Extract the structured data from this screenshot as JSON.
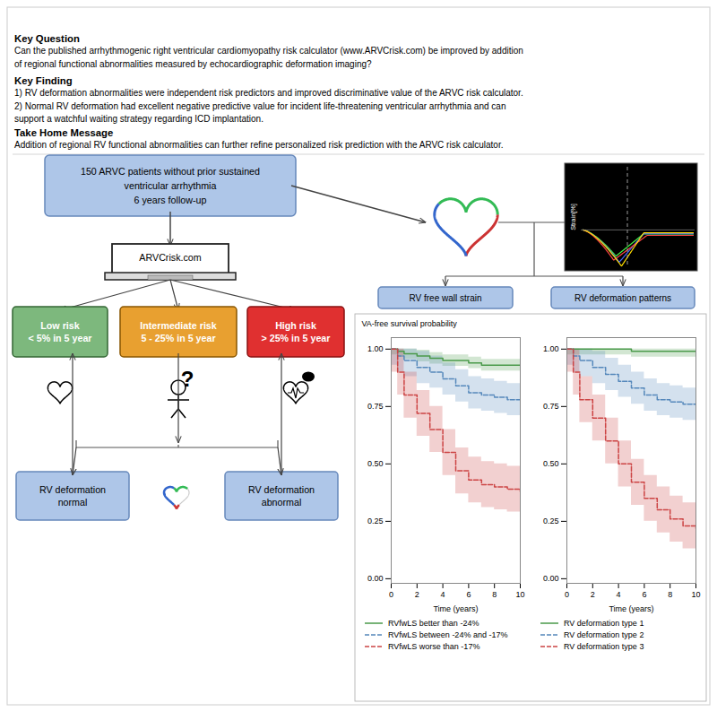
{
  "annotations": [
    {
      "text": "Key Question"
    },
    {
      "text": "Can the published arrhythmogenic right ventricular cardiomyopathy risk calculator (www.ARVCrisk.com) be improved by addition\nof regional functional abnormalities measured by echocardiographic deformation imaging?"
    },
    {
      "text": "Key Finding"
    },
    {
      "text": "1) RV deformation abnormalities were independent risk predictors and improved discriminative value of the ARVC risk calculator.\n2) Normal RV deformation had excellent negative predictive value for incident life-threatening ventricular arrhythmia and can\nsupport a watchful waiting strategy regarding ICD implantation."
    },
    {
      "text": "Take Home Message"
    },
    {
      "text": "Addition of regional RV functional abnormalities can further refine personalized risk prediction with the ARVC risk calculator."
    },
    {
      "text": "150 ARVC patients without prior sustained\nventricular arrhythmia\n6 years follow-up",
      "color": "#aec6e8"
    },
    {
      "text": "ARVCrisk.com"
    },
    {
      "text": "Low risk\n< 5% in 5 year",
      "color": "#7db87d"
    },
    {
      "text": "Intermediate risk\n5 - 25% in 5 year",
      "color": "#e8a030"
    },
    {
      "text": "High risk\n> 25% in 5 year",
      "color": "#e03030"
    },
    {
      "text": "RV deformation\nnormal",
      "color": "#aec6e8"
    },
    {
      "text": "RV deformation\nabnormal",
      "color": "#aec6e8"
    },
    {
      "text": "Strain[%]"
    },
    {
      "text": "RV free wall strain",
      "color": "#aec6e8"
    },
    {
      "text": "RV deformation patterns",
      "color": "#aec6e8"
    }
  ],
  "chart_data": [
    {
      "type": "step",
      "x_label": "Time (years)",
      "y_label": "VA-free survival probability",
      "x": [
        0,
        0.5,
        1,
        2,
        3,
        4,
        5,
        6,
        7,
        8,
        9,
        10
      ],
      "xlim": [
        0,
        10
      ],
      "ylim": [
        -0.02,
        1.05
      ],
      "xticks": [
        0,
        2,
        4,
        6,
        8,
        10
      ],
      "yticks": [
        {
          "value": 0,
          "label": "0.00"
        },
        0.25,
        {
          "value": 0.5,
          "label": "0.50"
        },
        0.75,
        {
          "value": 1,
          "label": "1.00"
        }
      ],
      "grid": false,
      "legend": "bottom",
      "series": [
        {
          "name": "RVfwLS better than -24%",
          "color": "#4a9a4a",
          "line_style": "solid",
          "values": [
            1.0,
            0.99,
            0.98,
            0.97,
            0.96,
            0.95,
            0.95,
            0.94,
            0.93,
            0.93,
            0.93,
            0.93
          ],
          "lower": [
            0.975,
            0.965,
            0.955,
            0.945,
            0.935,
            0.925,
            0.925,
            0.915,
            0.905,
            0.905,
            0.905,
            0.905
          ],
          "upper": [
            1,
            1,
            1,
            0.995,
            0.985,
            0.975,
            0.975,
            0.965,
            0.955,
            0.955,
            0.955,
            0.955
          ]
        },
        {
          "name": "RVfwLS between -24% and -17%",
          "color": "#5588bb",
          "line_style": "dashed",
          "values": [
            1.0,
            0.97,
            0.95,
            0.92,
            0.9,
            0.87,
            0.84,
            0.81,
            0.8,
            0.79,
            0.78,
            0.78
          ],
          "lower": [
            0.93,
            0.9,
            0.88,
            0.85,
            0.83,
            0.8,
            0.77,
            0.74,
            0.73,
            0.72,
            0.71,
            0.71
          ],
          "upper": [
            1,
            1,
            1,
            0.99,
            0.97,
            0.94,
            0.91,
            0.88,
            0.87,
            0.86,
            0.85,
            0.85
          ]
        },
        {
          "name": "RVfwLS worse than -17%",
          "color": "#cc4444",
          "line_style": "dashed",
          "values": [
            1.0,
            0.9,
            0.8,
            0.72,
            0.65,
            0.55,
            0.47,
            0.43,
            0.41,
            0.4,
            0.39,
            0.38
          ],
          "lower": [
            0.9,
            0.8,
            0.7,
            0.62,
            0.55,
            0.45,
            0.37,
            0.33,
            0.31,
            0.3,
            0.29,
            0.28
          ],
          "upper": [
            1,
            1,
            0.9,
            0.82,
            0.75,
            0.65,
            0.57,
            0.53,
            0.51,
            0.5,
            0.49,
            0.48
          ]
        }
      ]
    },
    {
      "type": "step",
      "x_label": "Time (years)",
      "x": [
        0,
        0.5,
        1,
        2,
        3,
        4,
        5,
        6,
        7,
        8,
        9,
        10
      ],
      "xlim": [
        0,
        10
      ],
      "ylim": [
        -0.02,
        1.05
      ],
      "xticks": [
        0,
        2,
        4,
        6,
        8,
        10
      ],
      "yticks": [
        {
          "value": 0,
          "label": "0.00"
        },
        0.25,
        {
          "value": 0.5,
          "label": "0.50"
        },
        0.75,
        {
          "value": 1,
          "label": "1.00"
        }
      ],
      "grid": false,
      "legend": "bottom",
      "series": [
        {
          "name": "RV deformation type 1",
          "color": "#4a9a4a",
          "line_style": "solid",
          "values": [
            1.0,
            1.0,
            1.0,
            1.0,
            1.0,
            1.0,
            0.99,
            0.99,
            0.99,
            0.99,
            0.99,
            0.99
          ],
          "lower": [
            0.975,
            0.975,
            0.975,
            0.975,
            0.975,
            0.975,
            0.965,
            0.965,
            0.965,
            0.965,
            0.965,
            0.965
          ],
          "upper": [
            1,
            1,
            1,
            1,
            1,
            1,
            1,
            1,
            1,
            1,
            1,
            1
          ]
        },
        {
          "name": "RV deformation type 2",
          "color": "#5588bb",
          "line_style": "dashed",
          "values": [
            1.0,
            0.97,
            0.95,
            0.92,
            0.89,
            0.86,
            0.83,
            0.8,
            0.78,
            0.77,
            0.76,
            0.76
          ],
          "lower": [
            0.93,
            0.9,
            0.88,
            0.85,
            0.82,
            0.79,
            0.76,
            0.73,
            0.71,
            0.7,
            0.69,
            0.69
          ],
          "upper": [
            1,
            1,
            1,
            0.99,
            0.96,
            0.93,
            0.9,
            0.87,
            0.85,
            0.84,
            0.83,
            0.83
          ]
        },
        {
          "name": "RV deformation type 3",
          "color": "#cc4444",
          "line_style": "dashed",
          "values": [
            1.0,
            0.9,
            0.78,
            0.7,
            0.6,
            0.5,
            0.42,
            0.35,
            0.3,
            0.26,
            0.23,
            0.22
          ],
          "lower": [
            0.9,
            0.8,
            0.68,
            0.6,
            0.5,
            0.4,
            0.32,
            0.25,
            0.2,
            0.16,
            0.13,
            0.12
          ],
          "upper": [
            1,
            1,
            0.88,
            0.8,
            0.7,
            0.6,
            0.52,
            0.45,
            0.4,
            0.36,
            0.33,
            0.32
          ]
        }
      ]
    }
  ]
}
